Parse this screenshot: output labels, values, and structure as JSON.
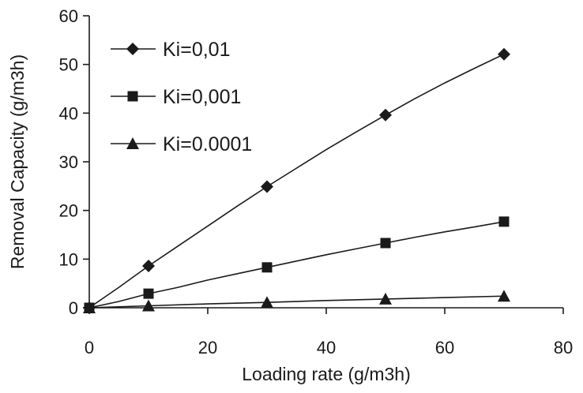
{
  "chart_data": {
    "type": "line",
    "title": "",
    "xlabel": "Loading rate (g/m3h)",
    "ylabel": "Removal Capacity (g/m3h)",
    "xlim": [
      0,
      80
    ],
    "ylim": [
      0,
      60
    ],
    "xticks": [
      0,
      20,
      40,
      60,
      80
    ],
    "yticks": [
      0,
      10,
      20,
      30,
      40,
      50,
      60
    ],
    "xtick_labels": [
      "0",
      "20",
      "40",
      "60",
      "80"
    ],
    "ytick_labels": [
      "0",
      "10",
      "20",
      "30",
      "40",
      "50",
      "60"
    ],
    "grid": false,
    "legend_position": "top-left",
    "line_color": "#1a1a1a",
    "series": [
      {
        "name": "Ki=0,01",
        "marker": "diamond",
        "x": [
          0,
          10,
          30,
          50,
          70
        ],
        "y": [
          0,
          8.6,
          24.9,
          39.6,
          52.1
        ],
        "curve": [
          [
            0,
            0
          ],
          [
            5,
            4.2
          ],
          [
            10,
            8.6
          ],
          [
            15,
            12.7
          ],
          [
            20,
            16.8
          ],
          [
            25,
            20.9
          ],
          [
            30,
            24.9
          ],
          [
            35,
            28.7
          ],
          [
            40,
            32.5
          ],
          [
            45,
            36.1
          ],
          [
            50,
            39.6
          ],
          [
            55,
            43.0
          ],
          [
            60,
            46.2
          ],
          [
            65,
            49.2
          ],
          [
            70,
            52.1
          ]
        ]
      },
      {
        "name": "Ki=0,001",
        "marker": "square",
        "x": [
          0,
          10,
          30,
          50,
          70
        ],
        "y": [
          0,
          2.9,
          8.3,
          13.3,
          17.7
        ],
        "curve": [
          [
            0,
            0
          ],
          [
            5,
            1.3
          ],
          [
            10,
            2.9
          ],
          [
            15,
            4.2
          ],
          [
            20,
            5.7
          ],
          [
            25,
            7.0
          ],
          [
            30,
            8.3
          ],
          [
            35,
            9.6
          ],
          [
            40,
            10.9
          ],
          [
            45,
            12.1
          ],
          [
            50,
            13.3
          ],
          [
            55,
            14.5
          ],
          [
            60,
            15.6
          ],
          [
            65,
            16.6
          ],
          [
            70,
            17.7
          ]
        ]
      },
      {
        "name": "Ki=0.0001",
        "marker": "triangle",
        "x": [
          0,
          10,
          30,
          50,
          70
        ],
        "y": [
          0,
          0.4,
          1.1,
          1.8,
          2.4
        ],
        "curve": [
          [
            0,
            0
          ],
          [
            10,
            0.4
          ],
          [
            20,
            0.8
          ],
          [
            30,
            1.1
          ],
          [
            40,
            1.5
          ],
          [
            50,
            1.8
          ],
          [
            60,
            2.1
          ],
          [
            70,
            2.4
          ]
        ]
      }
    ]
  }
}
